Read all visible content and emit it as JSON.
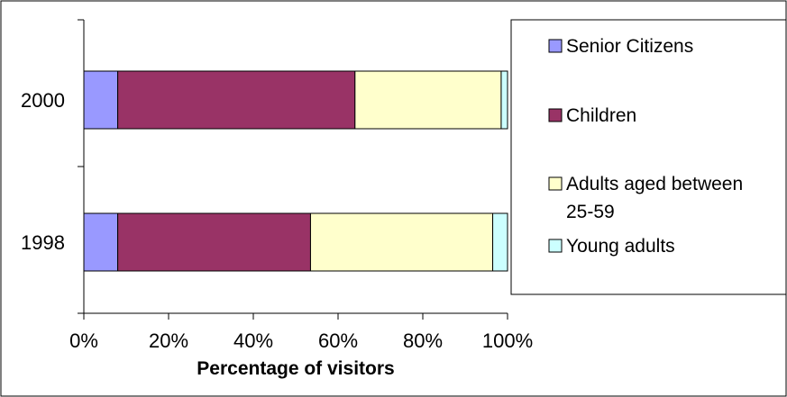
{
  "chart_data": {
    "type": "bar",
    "orientation": "horizontal",
    "stacked": true,
    "percent_stacked": true,
    "categories": [
      "2000",
      "1998"
    ],
    "series": [
      {
        "name": "Senior Citizens",
        "values": [
          8,
          8
        ],
        "color": "#9999ff"
      },
      {
        "name": "Children",
        "values": [
          56,
          45.5
        ],
        "color": "#993366"
      },
      {
        "name": "Adults aged between 25-59",
        "values": [
          34.5,
          43
        ],
        "color": "#ffffcc"
      },
      {
        "name": "Young adults",
        "values": [
          1.5,
          3.5
        ],
        "color": "#ccffff"
      }
    ],
    "legend_lines": [
      [
        "Senior Citizens"
      ],
      [
        "Children"
      ],
      [
        "Adults aged between",
        "25-59"
      ],
      [
        "Young adults"
      ]
    ],
    "title": "",
    "xlabel": "Percentage of visitors",
    "ylabel": "",
    "xlim": [
      0,
      100
    ],
    "x_ticks": [
      "0%",
      "20%",
      "40%",
      "60%",
      "80%",
      "100%"
    ],
    "grid": false,
    "legend": "right"
  }
}
